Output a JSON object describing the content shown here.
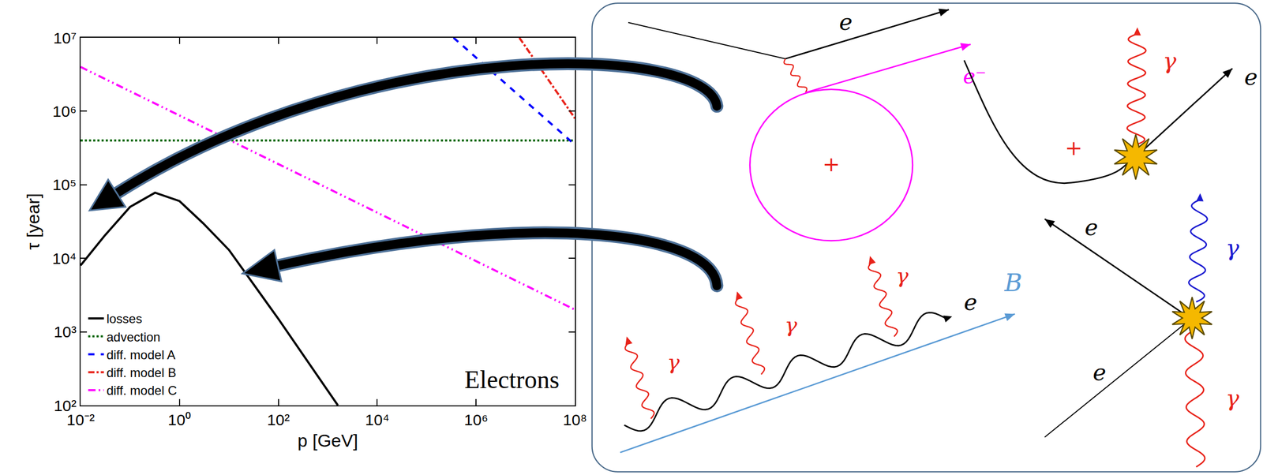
{
  "chart_data": {
    "type": "line",
    "x_label": "p [GeV]",
    "y_label": "τ [year]",
    "annotation": "Electrons",
    "log": true,
    "grid": false,
    "legend": "lower left",
    "xlim": [
      0.01,
      100000000
    ],
    "ylim": [
      100,
      10000000
    ],
    "xticks": [
      {
        "value": 0.01,
        "label": "10⁻²"
      },
      {
        "value": 1,
        "label": "10⁰"
      },
      {
        "value": 100,
        "label": "10²"
      },
      {
        "value": 10000,
        "label": "10⁴"
      },
      {
        "value": 1000000,
        "label": "10⁶"
      },
      {
        "value": 100000000,
        "label": "10⁸"
      }
    ],
    "yticks": [
      {
        "value": 100,
        "label": "10²"
      },
      {
        "value": 1000,
        "label": "10³"
      },
      {
        "value": 10000,
        "label": "10⁴"
      },
      {
        "value": 100000,
        "label": "10⁵"
      },
      {
        "value": 1000000,
        "label": "10⁶"
      },
      {
        "value": 10000000,
        "label": "10⁷"
      }
    ],
    "series": [
      {
        "name": "losses",
        "color": "#000000",
        "line_style": "solid",
        "x": [
          0.01,
          0.03,
          0.1,
          0.32,
          1,
          3,
          10,
          100,
          1600
        ],
        "values": [
          8000,
          20000,
          50000,
          78000,
          60000,
          30000,
          13000,
          1500,
          100
        ]
      },
      {
        "name": "advection",
        "color": "#006400",
        "line_style": "dot",
        "x": [
          0.01,
          100000000
        ],
        "values": [
          400000,
          400000
        ]
      },
      {
        "name": "diff. model A",
        "color": "#0000ff",
        "line_style": "dash",
        "x": [
          350000,
          100000000
        ],
        "values": [
          10000000,
          350000
        ]
      },
      {
        "name": "diff. model B",
        "color": "#e8231a",
        "line_style": "dashdot",
        "x": [
          7500000,
          100000000
        ],
        "values": [
          10000000,
          800000
        ]
      },
      {
        "name": "diff. model C",
        "color": "#ff00ff",
        "line_style": "dashdotdot",
        "x": [
          0.01,
          100000000
        ],
        "values": [
          4000000,
          2000
        ]
      }
    ]
  },
  "diagram": {
    "electron": "e",
    "electron_minus": "e⁻",
    "photon": "γ",
    "magnetic_field": "B",
    "nucleus": "+"
  }
}
